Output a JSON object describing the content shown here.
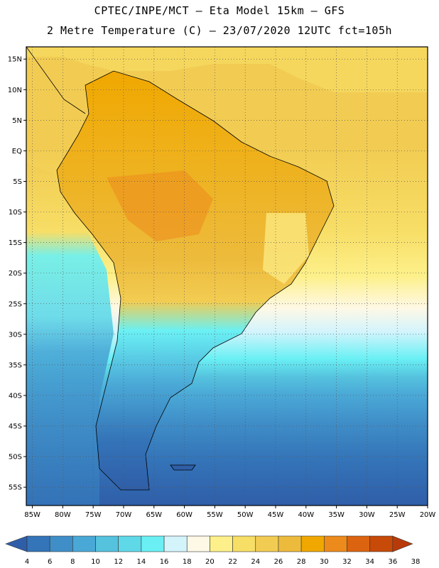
{
  "header": {
    "line1": "CPTEC/INPE/MCT –  Eta Model 15km – GFS",
    "line2": "2 Metre Temperature (C) – 23/07/2020 12UTC fct=105h"
  },
  "map": {
    "lat_labels": [
      "15N",
      "10N",
      "5N",
      "EQ",
      "5S",
      "10S",
      "15S",
      "20S",
      "25S",
      "30S",
      "35S",
      "40S",
      "45S",
      "50S",
      "55S"
    ],
    "lat_values": [
      15,
      10,
      5,
      0,
      -5,
      -10,
      -15,
      -20,
      -25,
      -30,
      -35,
      -40,
      -45,
      -50,
      -55
    ],
    "lon_labels": [
      "85W",
      "80W",
      "75W",
      "70W",
      "65W",
      "60W",
      "55W",
      "50W",
      "45W",
      "40W",
      "35W",
      "30W",
      "25W",
      "20W"
    ],
    "lon_values": [
      -85,
      -80,
      -75,
      -70,
      -65,
      -60,
      -55,
      -50,
      -45,
      -40,
      -35,
      -30,
      -25,
      -20
    ],
    "lat_range": [
      -58,
      17
    ],
    "lon_range": [
      -86,
      -20
    ],
    "grid": "dotted"
  },
  "legend": {
    "ticks": [
      "4",
      "6",
      "8",
      "10",
      "12",
      "14",
      "16",
      "18",
      "20",
      "22",
      "24",
      "26",
      "28",
      "30",
      "32",
      "34",
      "36",
      "38"
    ],
    "colors": [
      "#2f5ea8",
      "#3474b8",
      "#3f8ec8",
      "#4aa8d6",
      "#55c2de",
      "#5fd8e8",
      "#6af0f4",
      "#d4f4fc",
      "#fef8e6",
      "#fdf08a",
      "#f7de66",
      "#f2cc52",
      "#edbb3c",
      "#f0a800",
      "#ec8a1c",
      "#dc6410",
      "#c74a08",
      "#b83a0a"
    ]
  }
}
